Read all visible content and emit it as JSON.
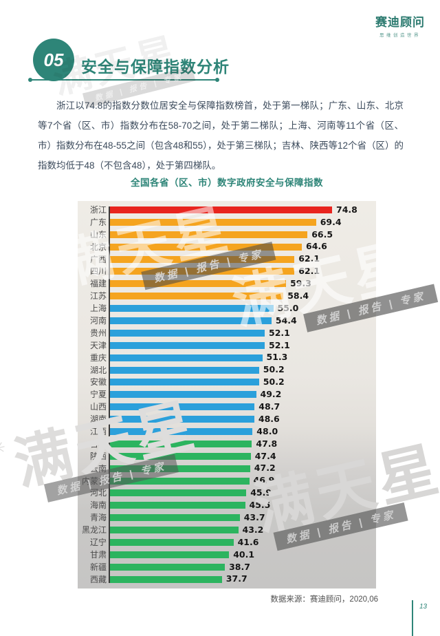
{
  "header": {
    "logo_title": "赛迪顾问",
    "logo_subtitle": "思维创造世界"
  },
  "section": {
    "number": "05",
    "title": "安全与保障指数分析"
  },
  "paragraph": "浙江以74.8的指数分数位居安全与保障指数榜首，处于第一梯队；广东、山东、北京等7个省（区、市）指数分布在58-70之间，处于第二梯队；上海、河南等11个省（区、市）指数分布在48-55之间（包含48和55），处于第三梯队；吉林、陕西等12个省（区）的指数均低于48（不包含48），处于第四梯队。",
  "source": "数据来源：赛迪顾问，2020,06",
  "page_number": "13",
  "watermark": {
    "star": "✳",
    "big": "满天星",
    "band": "数据 | 报告 | 专家"
  },
  "chart_data": {
    "type": "bar",
    "orientation": "horizontal",
    "title": "全国各省（区、市）数字政府安全与保障指数",
    "xlabel": "",
    "ylabel": "",
    "xlim": [
      0,
      80
    ],
    "grid": false,
    "legend": "none",
    "tier_colors": {
      "tier1": "#E8251F",
      "tier2": "#F5A41F",
      "tier3": "#2BA0DB",
      "tier4": "#2CB45F"
    },
    "items": [
      {
        "name": "浙江",
        "value": 74.8,
        "tier": "tier1"
      },
      {
        "name": "广东",
        "value": 69.4,
        "tier": "tier2"
      },
      {
        "name": "山东",
        "value": 66.5,
        "tier": "tier2"
      },
      {
        "name": "北京",
        "value": 64.6,
        "tier": "tier2"
      },
      {
        "name": "广西",
        "value": 62.1,
        "tier": "tier2"
      },
      {
        "name": "四川",
        "value": 62.1,
        "tier": "tier2"
      },
      {
        "name": "福建",
        "value": 59.3,
        "tier": "tier2"
      },
      {
        "name": "江苏",
        "value": 58.4,
        "tier": "tier2"
      },
      {
        "name": "上海",
        "value": 55.0,
        "tier": "tier3"
      },
      {
        "name": "河南",
        "value": 54.4,
        "tier": "tier3"
      },
      {
        "name": "贵州",
        "value": 52.1,
        "tier": "tier3"
      },
      {
        "name": "天津",
        "value": 52.1,
        "tier": "tier3"
      },
      {
        "name": "重庆",
        "value": 51.3,
        "tier": "tier3"
      },
      {
        "name": "湖北",
        "value": 50.2,
        "tier": "tier3"
      },
      {
        "name": "安徽",
        "value": 50.2,
        "tier": "tier3"
      },
      {
        "name": "宁夏",
        "value": 49.2,
        "tier": "tier3"
      },
      {
        "name": "山西",
        "value": 48.7,
        "tier": "tier3"
      },
      {
        "name": "湖南",
        "value": 48.6,
        "tier": "tier3"
      },
      {
        "name": "江西",
        "value": 48.0,
        "tier": "tier3"
      },
      {
        "name": "吉林",
        "value": 47.8,
        "tier": "tier4"
      },
      {
        "name": "陕西",
        "value": 47.4,
        "tier": "tier4"
      },
      {
        "name": "云南",
        "value": 47.2,
        "tier": "tier4"
      },
      {
        "name": "内蒙古",
        "value": 46.9,
        "tier": "tier4"
      },
      {
        "name": "河北",
        "value": 45.9,
        "tier": "tier4"
      },
      {
        "name": "海南",
        "value": 45.5,
        "tier": "tier4"
      },
      {
        "name": "青海",
        "value": 43.7,
        "tier": "tier4"
      },
      {
        "name": "黑龙江",
        "value": 43.2,
        "tier": "tier4"
      },
      {
        "name": "辽宁",
        "value": 41.6,
        "tier": "tier4"
      },
      {
        "name": "甘肃",
        "value": 40.1,
        "tier": "tier4"
      },
      {
        "name": "新疆",
        "value": 38.7,
        "tier": "tier4"
      },
      {
        "name": "西藏",
        "value": 37.7,
        "tier": "tier4"
      }
    ]
  }
}
